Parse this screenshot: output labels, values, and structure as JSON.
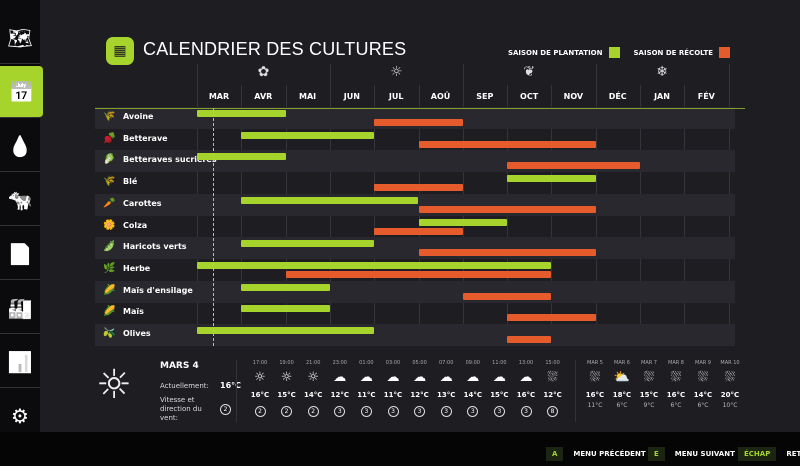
{
  "title": "CALENDRIER DES CULTURES",
  "legend": {
    "planting": "SAISON DE PLANTATION",
    "harvest": "SAISON DE RÉCOLTE",
    "planting_color": "#a6d32c",
    "harvest_color": "#e55b2b"
  },
  "sidebar": [
    "map-icon",
    "calendar-icon",
    "water-icon",
    "animals-icon",
    "documents-icon",
    "production-icon",
    "statistics-icon",
    "settings-icon"
  ],
  "months": [
    "MAR",
    "AVR",
    "MAI",
    "JUN",
    "JUL",
    "AOÛ",
    "SEP",
    "OCT",
    "NOV",
    "DÉC",
    "JAN",
    "FÉV"
  ],
  "seasons": [
    "spring-icon",
    "summer-icon",
    "autumn-icon",
    "winter-icon"
  ],
  "today_month_offset": 0.37,
  "crops": [
    {
      "name": "Avoine",
      "icon": "🌾",
      "plant": [
        0,
        2
      ],
      "harvest": [
        4,
        6
      ]
    },
    {
      "name": "Betterave",
      "icon": "🫜",
      "plant": [
        1,
        4
      ],
      "harvest": [
        5,
        9
      ]
    },
    {
      "name": "Betteraves sucrières",
      "icon": "🥬",
      "plant": [
        0,
        2
      ],
      "harvest": [
        7,
        10
      ]
    },
    {
      "name": "Blé",
      "icon": "🌾",
      "plant": [
        7,
        9
      ],
      "harvest": [
        4,
        6
      ]
    },
    {
      "name": "Carottes",
      "icon": "🥕",
      "plant": [
        1,
        5
      ],
      "harvest": [
        5,
        9
      ]
    },
    {
      "name": "Colza",
      "icon": "🌼",
      "plant": [
        5,
        7
      ],
      "harvest": [
        4,
        6
      ]
    },
    {
      "name": "Haricots verts",
      "icon": "🫛",
      "plant": [
        1,
        4
      ],
      "harvest": [
        5,
        9
      ]
    },
    {
      "name": "Herbe",
      "icon": "🌿",
      "plant": [
        0,
        8
      ],
      "harvest": [
        2,
        8
      ]
    },
    {
      "name": "Maïs d'ensilage",
      "icon": "🌽",
      "plant": [
        1,
        3
      ],
      "harvest": [
        6,
        8
      ]
    },
    {
      "name": "Maïs",
      "icon": "🌽",
      "plant": [
        1,
        3
      ],
      "harvest": [
        7,
        9
      ]
    },
    {
      "name": "Olives",
      "icon": "🫒",
      "plant": [
        0,
        4
      ],
      "harvest": [
        7,
        8
      ]
    }
  ],
  "weather": {
    "date": "MARS 4",
    "current_label": "Actuellement:",
    "current_temp": "16°C",
    "wind_label": "Vitesse et direction du vent:",
    "wind": "2",
    "hourly": [
      {
        "time": "17:00",
        "icon": "sun",
        "temp": "16°C",
        "wind": "2"
      },
      {
        "time": "19:00",
        "icon": "sun",
        "temp": "15°C",
        "wind": "2"
      },
      {
        "time": "21:00",
        "icon": "sun",
        "temp": "14°C",
        "wind": "2"
      },
      {
        "time": "23:00",
        "icon": "cloud",
        "temp": "12°C",
        "wind": "3"
      },
      {
        "time": "01:00",
        "icon": "cloud",
        "temp": "11°C",
        "wind": "3"
      },
      {
        "time": "03:00",
        "icon": "cloud",
        "temp": "11°C",
        "wind": "3"
      },
      {
        "time": "05:00",
        "icon": "cloud",
        "temp": "12°C",
        "wind": "3"
      },
      {
        "time": "07:00",
        "icon": "cloud",
        "temp": "13°C",
        "wind": "3"
      },
      {
        "time": "09:00",
        "icon": "cloud",
        "temp": "14°C",
        "wind": "3"
      },
      {
        "time": "11:00",
        "icon": "cloud",
        "temp": "15°C",
        "wind": "3"
      },
      {
        "time": "13:00",
        "icon": "cloud",
        "temp": "16°C",
        "wind": "3"
      },
      {
        "time": "15:00",
        "icon": "rain",
        "temp": "12°C",
        "wind": "8"
      }
    ],
    "daily": [
      {
        "day": "MAR 5",
        "icon": "rain",
        "high": "16°C",
        "low": "11°C"
      },
      {
        "day": "MAR 6",
        "icon": "partly-cloudy",
        "high": "18°C",
        "low": "6°C"
      },
      {
        "day": "MAR 7",
        "icon": "rain",
        "high": "15°C",
        "low": "9°C"
      },
      {
        "day": "MAR 8",
        "icon": "rain",
        "high": "16°C",
        "low": "6°C"
      },
      {
        "day": "MAR 9",
        "icon": "rain",
        "high": "14°C",
        "low": "6°C"
      },
      {
        "day": "MAR 10",
        "icon": "rain",
        "high": "20°C",
        "low": "10°C"
      }
    ]
  },
  "footer": [
    {
      "key": "A",
      "label": "MENU PRÉCÉDENT"
    },
    {
      "key": "E",
      "label": "MENU SUIVANT"
    },
    {
      "key": "ÉCHAP",
      "label": "RETOUR"
    }
  ]
}
